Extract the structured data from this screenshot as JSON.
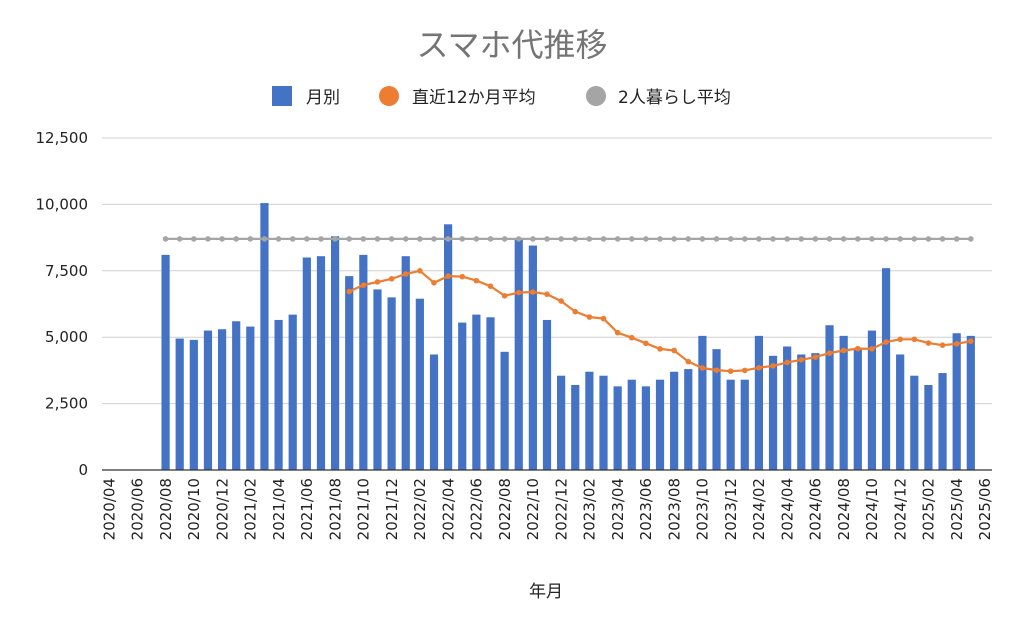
{
  "chart_data": {
    "type": "bar",
    "title": "スマホ代推移",
    "xlabel": "年月",
    "ylabel": "",
    "ylim": [
      0,
      12500
    ],
    "yticks": [
      0,
      2500,
      5000,
      7500,
      10000,
      12500
    ],
    "ytick_labels": [
      "0",
      "2,500",
      "5,000",
      "7,500",
      "10,000",
      "12,500"
    ],
    "categories": [
      "2020/04",
      "2020/05",
      "2020/06",
      "2020/07",
      "2020/08",
      "2020/09",
      "2020/10",
      "2020/11",
      "2020/12",
      "2021/01",
      "2021/02",
      "2021/03",
      "2021/04",
      "2021/05",
      "2021/06",
      "2021/07",
      "2021/08",
      "2021/09",
      "2021/10",
      "2021/11",
      "2021/12",
      "2022/01",
      "2022/02",
      "2022/03",
      "2022/04",
      "2022/05",
      "2022/06",
      "2022/07",
      "2022/08",
      "2022/09",
      "2022/10",
      "2022/11",
      "2022/12",
      "2023/01",
      "2023/02",
      "2023/03",
      "2023/04",
      "2023/05",
      "2023/06",
      "2023/07",
      "2023/08",
      "2023/09",
      "2023/10",
      "2023/11",
      "2023/12",
      "2024/01",
      "2024/02",
      "2024/03",
      "2024/04",
      "2024/05",
      "2024/06",
      "2024/07",
      "2024/08",
      "2024/09",
      "2024/10",
      "2024/11",
      "2024/12",
      "2025/01",
      "2025/02",
      "2025/03",
      "2025/04",
      "2025/05",
      "2025/06"
    ],
    "xtick_labels": [
      "2020/04",
      "2020/06",
      "2020/08",
      "2020/10",
      "2020/12",
      "2021/02",
      "2021/04",
      "2021/06",
      "2021/08",
      "2021/10",
      "2021/12",
      "2022/02",
      "2022/04",
      "2022/06",
      "2022/08",
      "2022/10",
      "2022/12",
      "2023/02",
      "2023/04",
      "2023/06",
      "2023/08",
      "2023/10",
      "2023/12",
      "2024/02",
      "2024/04",
      "2024/06",
      "2024/08",
      "2024/10",
      "2024/12",
      "2025/02",
      "2025/04",
      "2025/06"
    ],
    "grid": true,
    "legend_position": "top",
    "series": [
      {
        "name": "月別",
        "kind": "bar",
        "color": "#4472c4",
        "values": [
          null,
          null,
          null,
          null,
          8100,
          4950,
          4900,
          5250,
          5300,
          5600,
          5400,
          10050,
          5650,
          5850,
          8000,
          8050,
          8800,
          7300,
          8100,
          6800,
          6500,
          8050,
          6450,
          4350,
          9250,
          5550,
          5850,
          5750,
          4450,
          8700,
          8450,
          5650,
          3550,
          3200,
          3700,
          3550,
          3150,
          3400,
          3150,
          3400,
          3700,
          3800,
          5050,
          4550,
          3400,
          3400,
          5050,
          4300,
          4650,
          4350,
          4400,
          5450,
          5050,
          4600,
          5250,
          7600,
          4350,
          3550,
          3200,
          3650,
          5150,
          5050,
          null
        ]
      },
      {
        "name": "直近12か月平均",
        "kind": "line",
        "color": "#ed7d31",
        "values": [
          null,
          null,
          null,
          null,
          null,
          null,
          null,
          null,
          null,
          null,
          null,
          null,
          null,
          null,
          null,
          null,
          null,
          6720,
          6960,
          7080,
          7200,
          7380,
          7500,
          7050,
          7300,
          7280,
          7130,
          6920,
          6560,
          6680,
          6700,
          6620,
          6360,
          5960,
          5760,
          5700,
          5170,
          4980,
          4770,
          4560,
          4500,
          4080,
          3840,
          3760,
          3720,
          3750,
          3850,
          3920,
          4050,
          4150,
          4250,
          4400,
          4500,
          4570,
          4560,
          4820,
          4920,
          4920,
          4780,
          4700,
          4750,
          4850,
          null
        ]
      },
      {
        "name": "2人暮らし平均",
        "kind": "line",
        "color": "#a5a5a5",
        "values": [
          null,
          null,
          null,
          null,
          8700,
          8700,
          8700,
          8700,
          8700,
          8700,
          8700,
          8700,
          8700,
          8700,
          8700,
          8700,
          8700,
          8700,
          8700,
          8700,
          8700,
          8700,
          8700,
          8700,
          8700,
          8700,
          8700,
          8700,
          8700,
          8700,
          8700,
          8700,
          8700,
          8700,
          8700,
          8700,
          8700,
          8700,
          8700,
          8700,
          8700,
          8700,
          8700,
          8700,
          8700,
          8700,
          8700,
          8700,
          8700,
          8700,
          8700,
          8700,
          8700,
          8700,
          8700,
          8700,
          8700,
          8700,
          8700,
          8700,
          8700,
          8700,
          null
        ]
      }
    ]
  }
}
